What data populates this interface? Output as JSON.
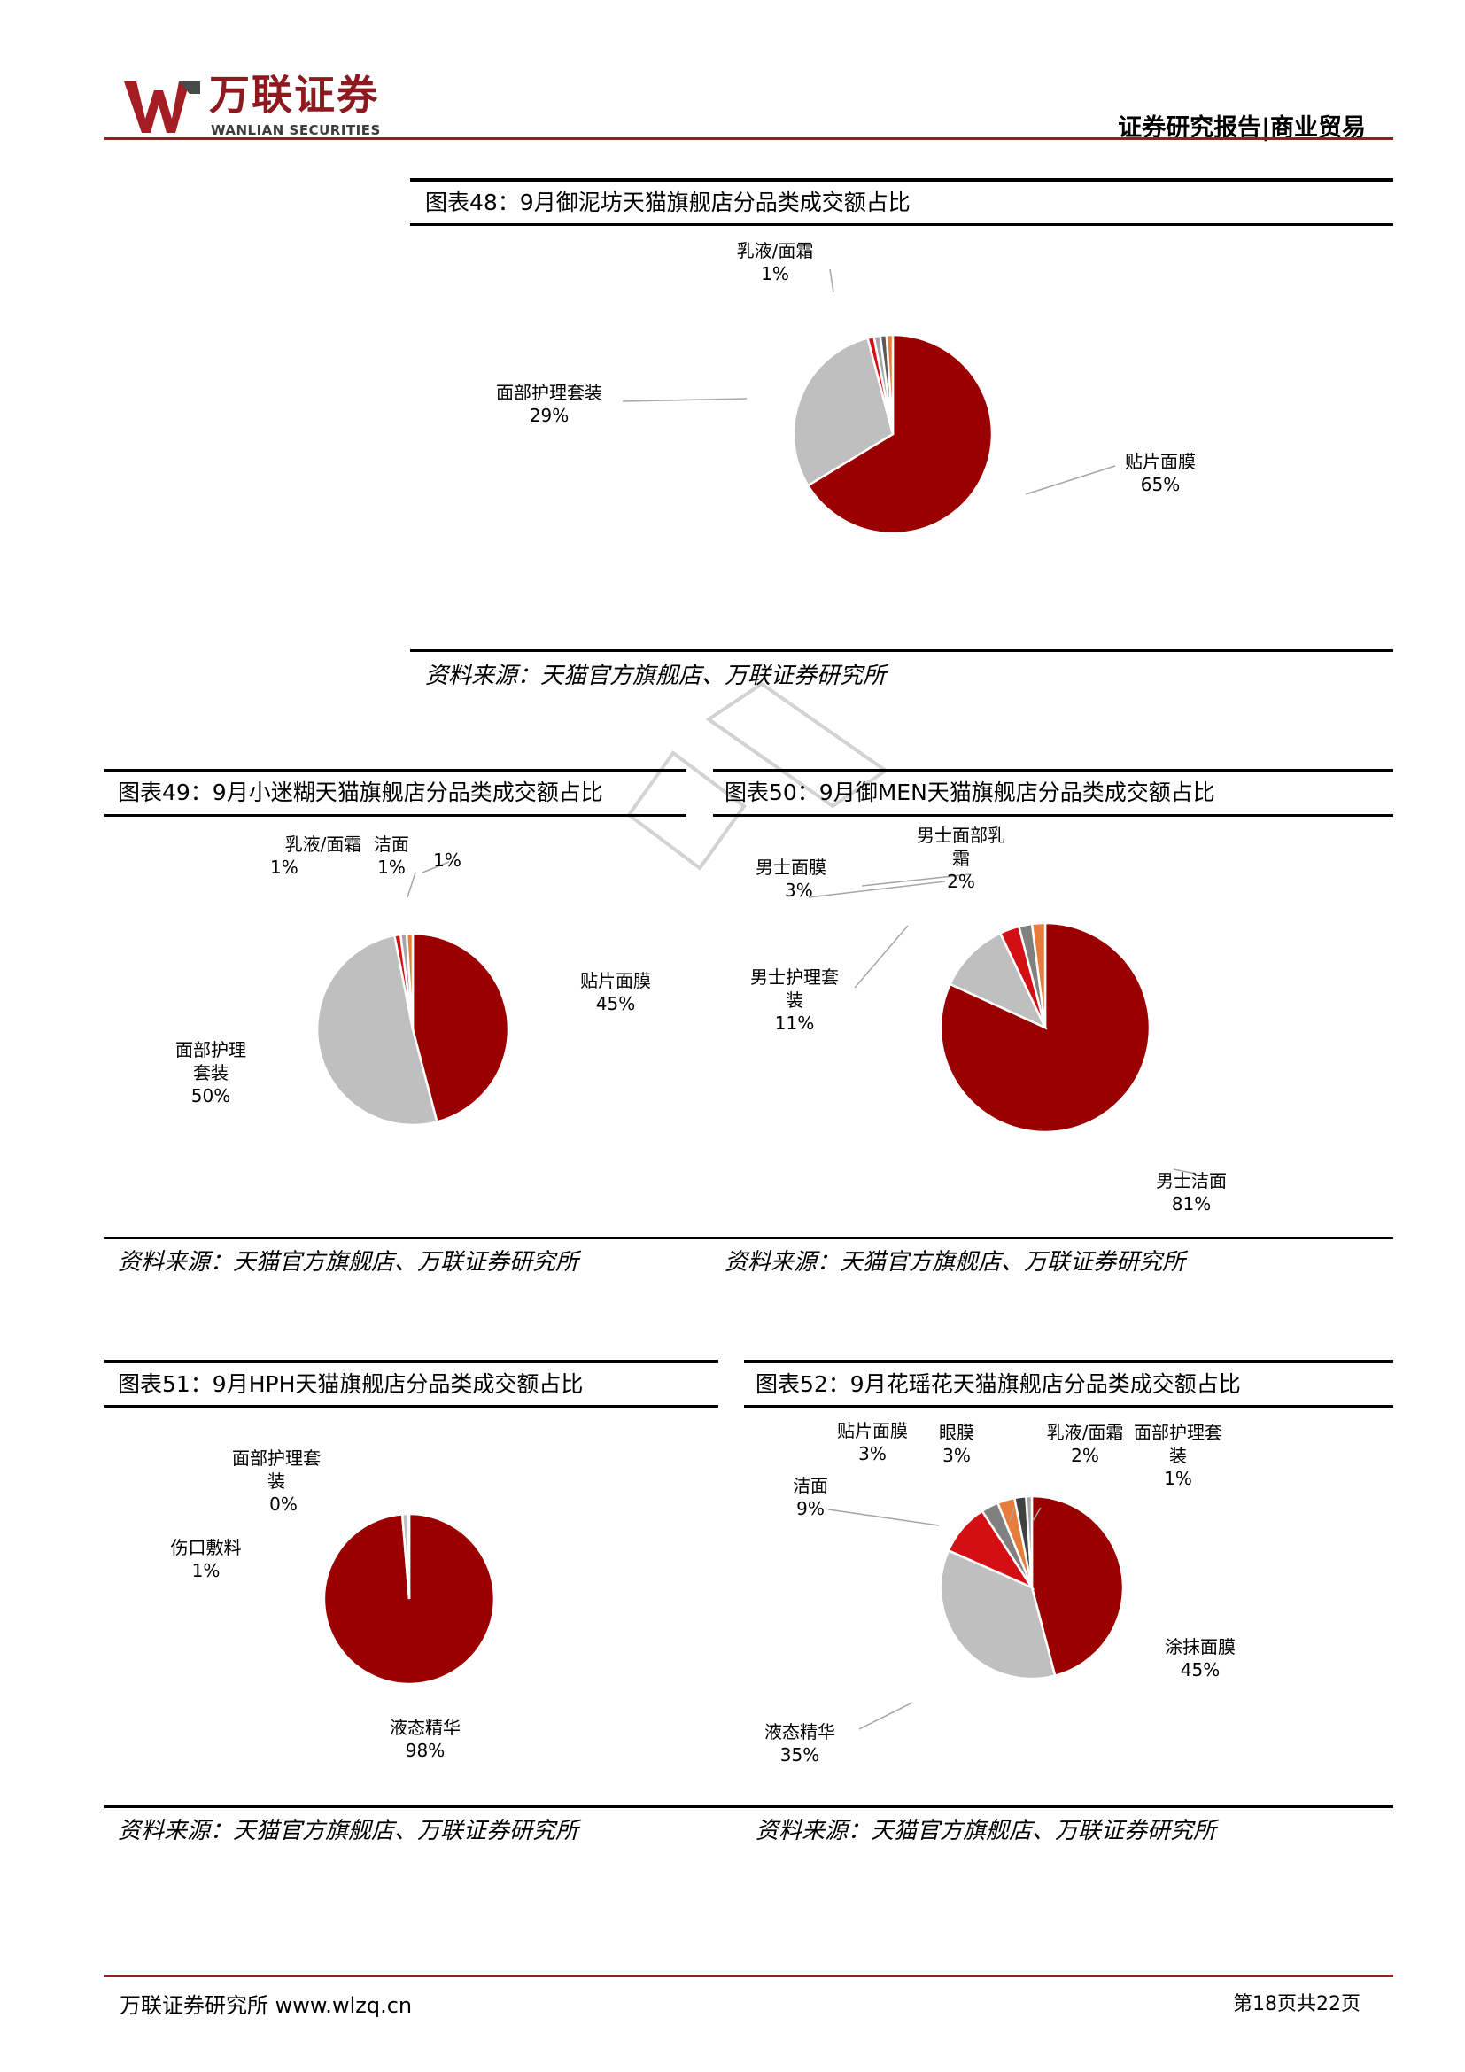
{
  "header": {
    "logo_cn": "万联证券",
    "logo_en": "WANLIAN SECURITIES",
    "report_tag": "证券研究报告|商业贸易"
  },
  "figures": [
    {
      "title": "图表48：9月御泥坊天猫旗舰店分品类成交额占比",
      "source": "资料来源：天猫官方旗舰店、万联证券研究所",
      "labels": [
        {
          "name": "乳液/面霜",
          "pct": "1%"
        },
        {
          "name": "面部护理套装",
          "pct": "29%"
        },
        {
          "name": "贴片面膜",
          "pct": "65%"
        }
      ]
    },
    {
      "title": "图表49：9月小迷糊天猫旗舰店分品类成交额占比",
      "source": "资料来源：天猫官方旗舰店、万联证券研究所",
      "labels": [
        {
          "name": "乳液/面霜",
          "pct": "1%"
        },
        {
          "name": "洁面",
          "pct": "1%"
        },
        {
          "name": "",
          "pct": "1%"
        },
        {
          "name": "贴片面膜",
          "pct": "45%"
        },
        {
          "name": "面部护理套装",
          "pct": "50%"
        }
      ]
    },
    {
      "title": "图表50：9月御MEN天猫旗舰店分品类成交额占比",
      "source": "资料来源：天猫官方旗舰店、万联证券研究所",
      "labels": [
        {
          "name": "男士面部乳霜",
          "pct": "2%"
        },
        {
          "name": "男士面膜",
          "pct": "3%"
        },
        {
          "name": "男士护理套装",
          "pct": "11%"
        },
        {
          "name": "男士洁面",
          "pct": "81%"
        }
      ]
    },
    {
      "title": "图表51：9月HPH天猫旗舰店分品类成交额占比",
      "source": "资料来源：天猫官方旗舰店、万联证券研究所",
      "labels": [
        {
          "name": "面部护理套装",
          "pct": "0%"
        },
        {
          "name": "伤口敷料",
          "pct": "1%"
        },
        {
          "name": "液态精华",
          "pct": "98%"
        }
      ]
    },
    {
      "title": "图表52：9月花瑶花天猫旗舰店分品类成交额占比",
      "source": "资料来源：天猫官方旗舰店、万联证券研究所",
      "labels": [
        {
          "name": "贴片面膜",
          "pct": "3%"
        },
        {
          "name": "眼膜",
          "pct": "3%"
        },
        {
          "name": "乳液/面霜",
          "pct": "2%"
        },
        {
          "name": "面部护理套装",
          "pct": "1%"
        },
        {
          "name": "洁面",
          "pct": "9%"
        },
        {
          "name": "涂抹面膜",
          "pct": "45%"
        },
        {
          "name": "液态精华",
          "pct": "35%"
        }
      ]
    }
  ],
  "chart_data": [
    {
      "type": "pie",
      "title": "图表48：9月御泥坊天猫旗舰店分品类成交额占比",
      "categories": [
        "贴片面膜",
        "面部护理套装",
        "乳液/面霜",
        "",
        "",
        ""
      ],
      "values": [
        65,
        29,
        1,
        1,
        1,
        1
      ],
      "colors": [
        "#9a0000",
        "#bfbfbf",
        "#d40f14",
        "#a6a6a6",
        "#595959",
        "#e87c3c"
      ]
    },
    {
      "type": "pie",
      "title": "图表49：9月小迷糊天猫旗舰店分品类成交额占比",
      "categories": [
        "贴片面膜",
        "面部护理套装",
        "乳液/面霜",
        "洁面",
        ""
      ],
      "values": [
        45,
        50,
        1,
        1,
        1
      ],
      "colors": [
        "#9a0000",
        "#bfbfbf",
        "#d40f14",
        "#a6a6a6",
        "#e87c3c"
      ]
    },
    {
      "type": "pie",
      "title": "图表50：9月御MEN天猫旗舰店分品类成交额占比",
      "categories": [
        "男士洁面",
        "男士护理套装",
        "男士面膜",
        "男士面部乳霜",
        ""
      ],
      "values": [
        81,
        11,
        3,
        2,
        2
      ],
      "colors": [
        "#9a0000",
        "#bfbfbf",
        "#d40f14",
        "#808080",
        "#e87c3c"
      ]
    },
    {
      "type": "pie",
      "title": "图表51：9月HPH天猫旗舰店分品类成交额占比",
      "categories": [
        "液态精华",
        "伤口敷料",
        "面部护理套装"
      ],
      "values": [
        98,
        1,
        0.3
      ],
      "colors": [
        "#9a0000",
        "#bfbfbf",
        "#d40f14"
      ]
    },
    {
      "type": "pie",
      "title": "图表52：9月花瑶花天猫旗舰店分品类成交额占比",
      "categories": [
        "涂抹面膜",
        "液态精华",
        "洁面",
        "贴片面膜",
        "眼膜",
        "乳液/面霜",
        "面部护理套装"
      ],
      "values": [
        45,
        35,
        9,
        3,
        3,
        2,
        1
      ],
      "colors": [
        "#9a0000",
        "#bfbfbf",
        "#d40f14",
        "#808080",
        "#e87c3c",
        "#404040",
        "#a6a6a6"
      ]
    }
  ],
  "footer": {
    "left": "万联证券研究所 www.wlzq.cn",
    "right": "第18页共22页"
  }
}
